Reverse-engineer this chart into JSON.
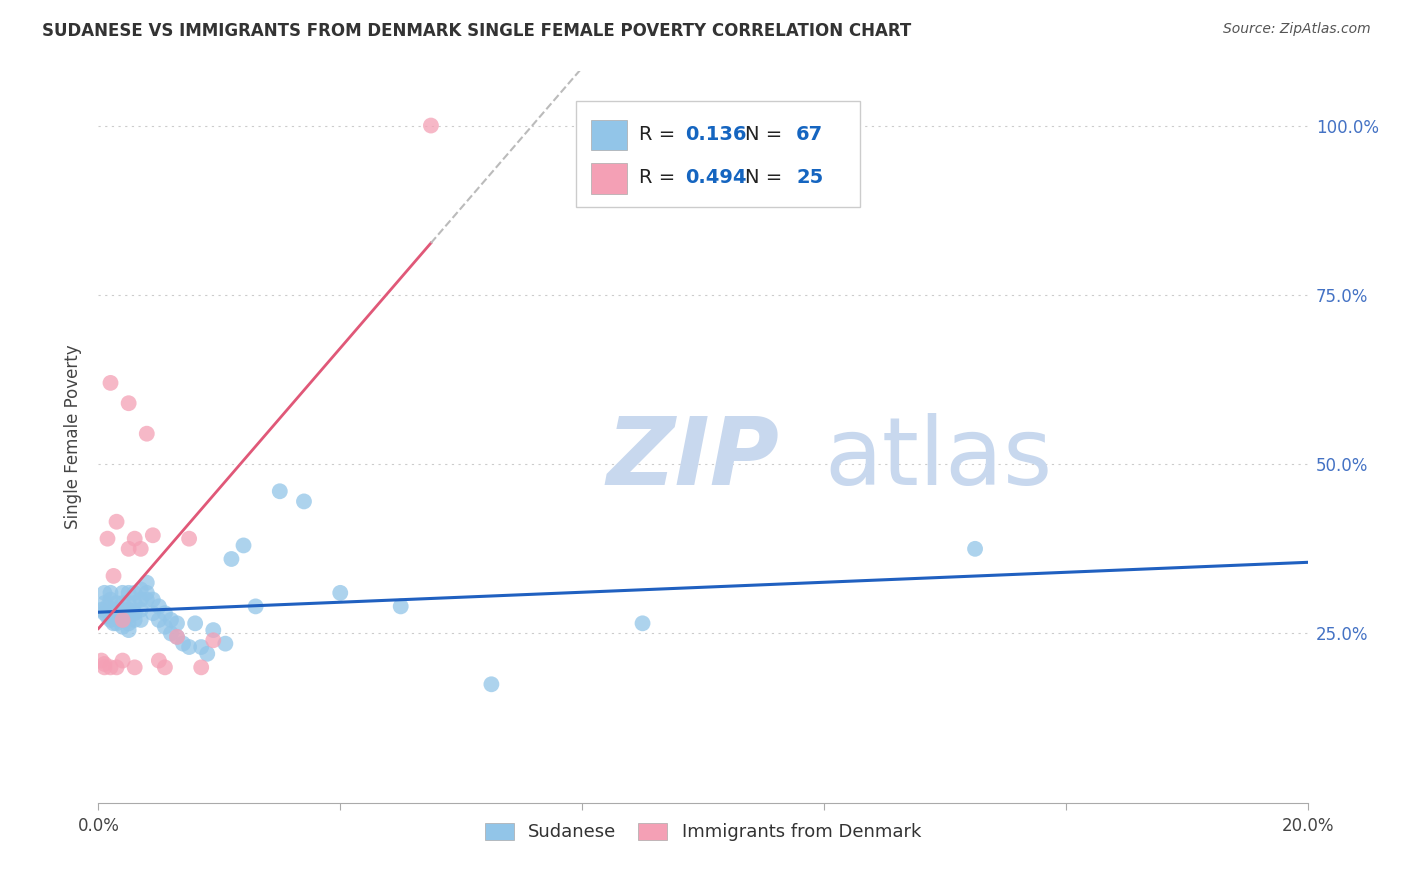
{
  "title": "SUDANESE VS IMMIGRANTS FROM DENMARK SINGLE FEMALE POVERTY CORRELATION CHART",
  "source": "Source: ZipAtlas.com",
  "ylabel_label": "Single Female Poverty",
  "x_min": 0.0,
  "x_max": 0.2,
  "y_min": 0.0,
  "y_max": 1.08,
  "sudanese_color": "#92C5E8",
  "denmark_color": "#F4A0B5",
  "sudanese_R": 0.136,
  "sudanese_N": 67,
  "denmark_R": 0.494,
  "denmark_N": 25,
  "trend_blue_color": "#2060C0",
  "trend_pink_color": "#E05878",
  "watermark_zip": "ZIP",
  "watermark_atlas": "atlas",
  "watermark_color": "#C8D8EE",
  "sudanese_x": [
    0.0005,
    0.001,
    0.001,
    0.001,
    0.0015,
    0.0015,
    0.002,
    0.002,
    0.002,
    0.002,
    0.0025,
    0.0025,
    0.003,
    0.003,
    0.003,
    0.003,
    0.0035,
    0.0035,
    0.004,
    0.004,
    0.004,
    0.004,
    0.004,
    0.005,
    0.005,
    0.005,
    0.005,
    0.005,
    0.005,
    0.006,
    0.006,
    0.006,
    0.006,
    0.007,
    0.007,
    0.007,
    0.007,
    0.008,
    0.008,
    0.008,
    0.009,
    0.009,
    0.01,
    0.01,
    0.011,
    0.011,
    0.012,
    0.012,
    0.013,
    0.013,
    0.014,
    0.015,
    0.016,
    0.017,
    0.018,
    0.019,
    0.021,
    0.022,
    0.024,
    0.026,
    0.03,
    0.034,
    0.04,
    0.05,
    0.065,
    0.09,
    0.145
  ],
  "sudanese_y": [
    0.285,
    0.28,
    0.295,
    0.31,
    0.275,
    0.29,
    0.27,
    0.28,
    0.3,
    0.31,
    0.265,
    0.275,
    0.265,
    0.275,
    0.285,
    0.295,
    0.27,
    0.28,
    0.26,
    0.27,
    0.28,
    0.295,
    0.31,
    0.255,
    0.265,
    0.275,
    0.285,
    0.295,
    0.31,
    0.27,
    0.28,
    0.295,
    0.31,
    0.27,
    0.285,
    0.3,
    0.315,
    0.3,
    0.31,
    0.325,
    0.28,
    0.3,
    0.27,
    0.29,
    0.26,
    0.28,
    0.25,
    0.27,
    0.245,
    0.265,
    0.235,
    0.23,
    0.265,
    0.23,
    0.22,
    0.255,
    0.235,
    0.36,
    0.38,
    0.29,
    0.46,
    0.445,
    0.31,
    0.29,
    0.175,
    0.265,
    0.375
  ],
  "denmark_x": [
    0.0005,
    0.001,
    0.001,
    0.0015,
    0.002,
    0.002,
    0.0025,
    0.003,
    0.003,
    0.004,
    0.004,
    0.005,
    0.005,
    0.006,
    0.006,
    0.007,
    0.008,
    0.009,
    0.01,
    0.011,
    0.013,
    0.015,
    0.017,
    0.019,
    0.055
  ],
  "denmark_y": [
    0.21,
    0.205,
    0.2,
    0.39,
    0.2,
    0.62,
    0.335,
    0.2,
    0.415,
    0.21,
    0.27,
    0.375,
    0.59,
    0.39,
    0.2,
    0.375,
    0.545,
    0.395,
    0.21,
    0.2,
    0.245,
    0.39,
    0.2,
    0.24,
    1.0
  ]
}
